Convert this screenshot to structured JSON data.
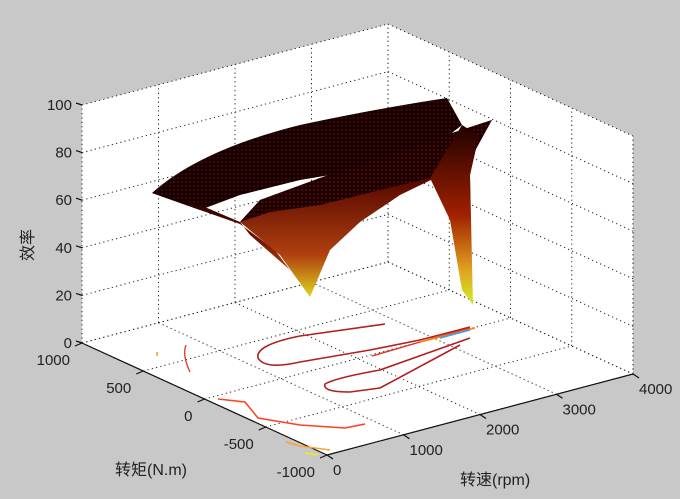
{
  "chart_data": {
    "type": "surface",
    "title": "",
    "xlabel": "转速(rpm)",
    "ylabel": "转矩(N.m)",
    "zlabel": "效率",
    "xlim": [
      0,
      4000
    ],
    "ylim": [
      -1000,
      1000
    ],
    "zlim": [
      0,
      100
    ],
    "xticks": [
      "0",
      "1000",
      "2000",
      "3000",
      "4000"
    ],
    "yticks": [
      "1000",
      "500",
      "0",
      "-500",
      "-1000"
    ],
    "zticks": [
      "0",
      "20",
      "40",
      "60",
      "80",
      "100"
    ],
    "grid": true,
    "colormap": "hot",
    "contour_on_floor": true
  }
}
